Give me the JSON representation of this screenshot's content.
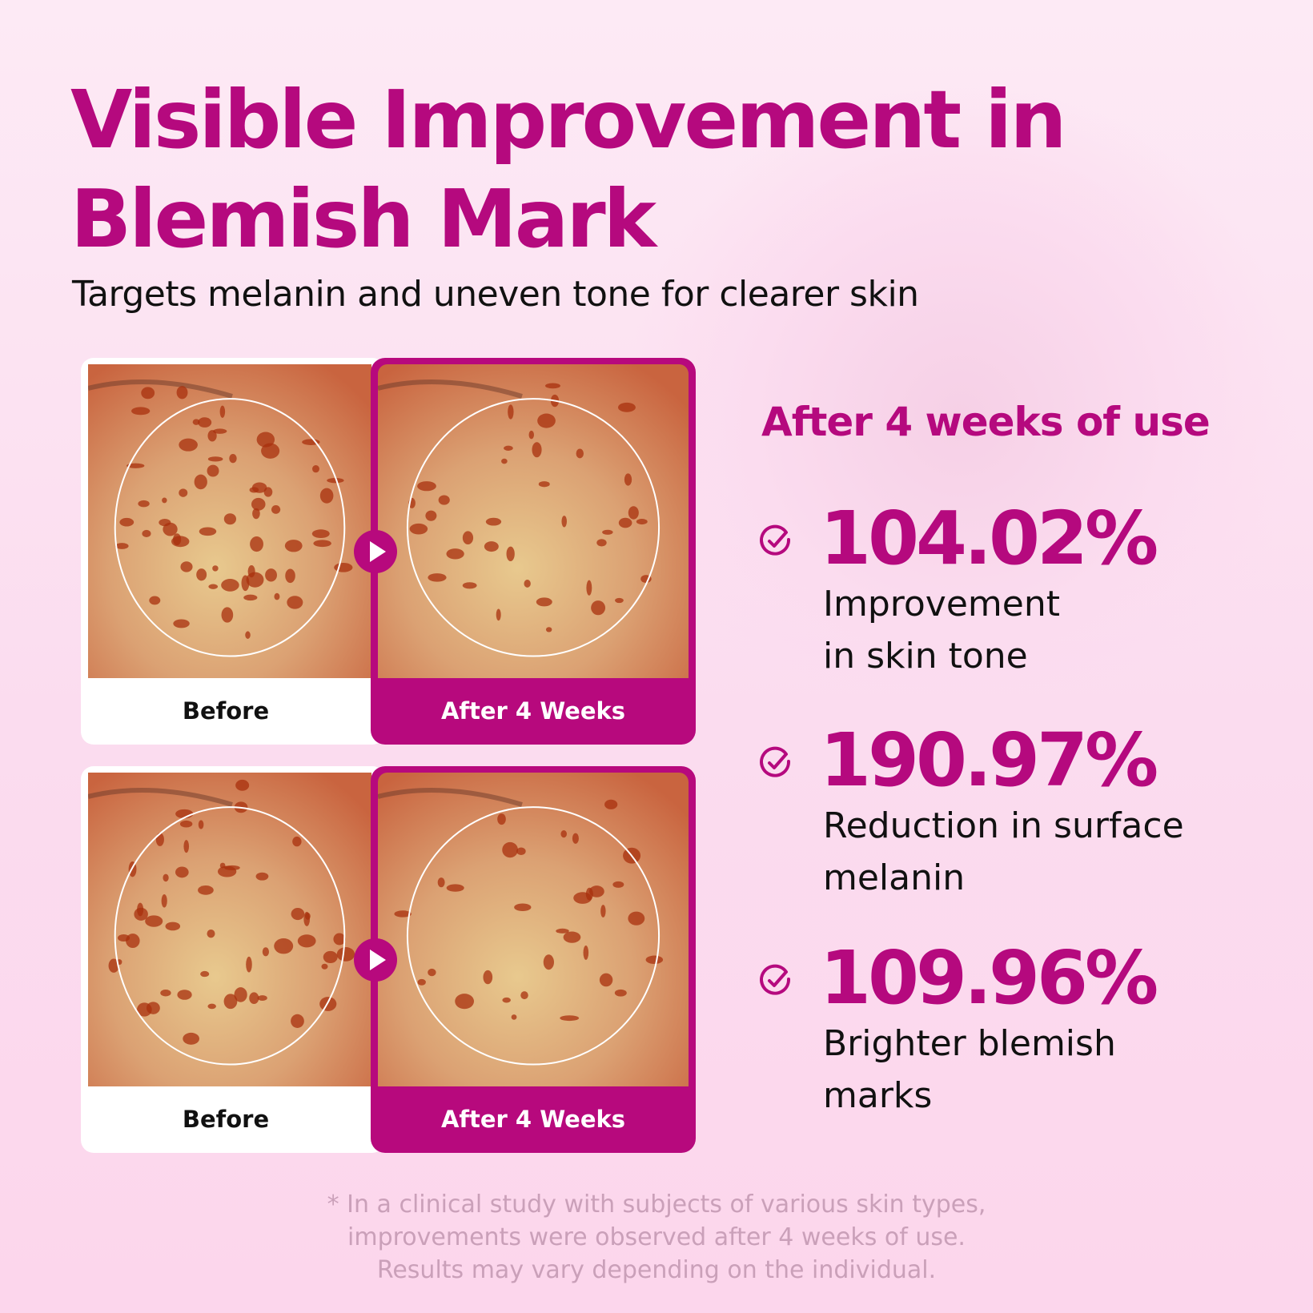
{
  "title": {
    "line1": "Visible Improvement in",
    "line2": "Blemish Mark"
  },
  "subtitle": "Targets melanin and uneven tone for clearer skin",
  "comparisons": [
    {
      "before_label": "Before",
      "after_label": "After 4 Weeks"
    },
    {
      "before_label": "Before",
      "after_label": "After 4 Weeks"
    }
  ],
  "results": {
    "heading": "After 4 weeks of use",
    "stats": [
      {
        "value": "104.02%",
        "line1": "Improvement",
        "line2": "in skin tone"
      },
      {
        "value": "190.97%",
        "line1": "Reduction in surface",
        "line2": "melanin"
      },
      {
        "value": "109.96%",
        "line1": "Brighter blemish",
        "line2": "marks"
      }
    ]
  },
  "footnote": {
    "line1": "* In a clinical study with subjects of various skin types,",
    "line2": "improvements were observed after 4 weeks of use.",
    "line3": "Results may vary depending on the individual."
  },
  "colors": {
    "accent": "#b7097d",
    "background": "#fbdcef",
    "text": "#111111",
    "footnote": "#caa0b9"
  },
  "icons": {
    "check": "check-circle-icon",
    "arrow": "play-arrow-icon"
  }
}
